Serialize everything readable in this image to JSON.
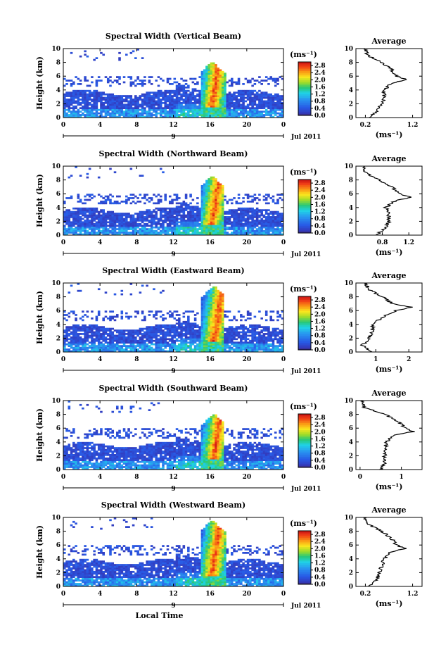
{
  "figure": {
    "date_label": "Jul 2011",
    "day_label": "9",
    "xlabel_bottom": "Local Time",
    "colorbar_unit_label": "(ms⁻¹)"
  },
  "chart_data": [
    {
      "type": "heatmap",
      "title": "Spectral Width (Vertical Beam)",
      "xlabel": "",
      "ylabel": "Height (km)",
      "xlim": [
        0,
        24
      ],
      "ylim": [
        0,
        10
      ],
      "x_ticks": [
        "0",
        "4",
        "8",
        "12",
        "16",
        "20",
        "0"
      ],
      "y_ticks": [
        "0",
        "2",
        "4",
        "6",
        "8",
        "10"
      ],
      "colorbar": {
        "label": "(ms⁻¹)",
        "ticks": [
          "0.0",
          "0.4",
          "0.8",
          "1.2",
          "1.6",
          "2.0",
          "2.4",
          "2.8"
        ],
        "range": [
          0,
          3.0
        ]
      },
      "convective_event": {
        "time_start": 14.8,
        "time_end": 17.5,
        "max_height": 8.0
      },
      "profile": {
        "title": "Average",
        "xlabel": "(ms⁻¹)",
        "x_ticks": [
          "0.2",
          "1.2"
        ],
        "xlim": [
          0.0,
          1.4
        ],
        "heights": [
          0,
          1,
          2,
          3,
          4,
          5,
          5.5,
          6,
          7,
          8,
          9,
          10
        ],
        "values": [
          0.3,
          0.45,
          0.55,
          0.6,
          0.6,
          0.75,
          1.1,
          0.85,
          0.75,
          0.55,
          0.25,
          0.2
        ]
      }
    },
    {
      "type": "heatmap",
      "title": "Spectral Width (Northward Beam)",
      "xlabel": "",
      "ylabel": "Height (km)",
      "xlim": [
        0,
        24
      ],
      "ylim": [
        0,
        10
      ],
      "x_ticks": [
        "0",
        "4",
        "8",
        "12",
        "16",
        "20",
        "0"
      ],
      "y_ticks": [
        "0",
        "2",
        "4",
        "6",
        "8",
        "10"
      ],
      "colorbar": {
        "label": "(ms⁻¹)",
        "ticks": [
          "0.0",
          "0.4",
          "0.8",
          "1.2",
          "1.6",
          "2.0",
          "2.4",
          "2.8"
        ],
        "range": [
          0,
          3.0
        ]
      },
      "convective_event": {
        "time_start": 14.8,
        "time_end": 17.3,
        "max_height": 8.5
      },
      "profile": {
        "title": "Average",
        "xlabel": "(ms⁻¹)",
        "x_ticks": [
          "0.8",
          "1.2"
        ],
        "xlim": [
          0.4,
          1.4
        ],
        "heights": [
          0,
          1,
          2,
          3,
          4,
          5,
          5.5,
          6,
          7,
          8,
          9,
          10
        ],
        "values": [
          0.7,
          0.85,
          0.9,
          0.9,
          0.85,
          1.0,
          1.25,
          1.05,
          0.95,
          0.75,
          0.55,
          0.5
        ]
      }
    },
    {
      "type": "heatmap",
      "title": "Spectral Width (Eastward Beam)",
      "xlabel": "",
      "ylabel": "Height (km)",
      "xlim": [
        0,
        24
      ],
      "ylim": [
        0,
        10
      ],
      "x_ticks": [
        "0",
        "4",
        "8",
        "12",
        "16",
        "20",
        "0"
      ],
      "y_ticks": [
        "0",
        "2",
        "4",
        "6",
        "8",
        "10"
      ],
      "colorbar": {
        "label": "(ms⁻¹)",
        "ticks": [
          "0.0",
          "0.4",
          "0.8",
          "1.2",
          "1.6",
          "2.0",
          "2.4",
          "2.8"
        ],
        "range": [
          0,
          3.0
        ]
      },
      "convective_event": {
        "time_start": 15.0,
        "time_end": 17.3,
        "max_height": 9.5
      },
      "profile": {
        "title": "Average",
        "xlabel": "(ms⁻¹)",
        "x_ticks": [
          "1",
          "2"
        ],
        "xlim": [
          0.4,
          2.4
        ],
        "heights": [
          0,
          1,
          2,
          3,
          4,
          5,
          6,
          6.5,
          7,
          8,
          9,
          10
        ],
        "values": [
          0.9,
          0.6,
          0.8,
          0.9,
          0.9,
          1.2,
          1.6,
          2.1,
          1.5,
          1.2,
          0.8,
          0.7
        ]
      }
    },
    {
      "type": "heatmap",
      "title": "Spectral Width (Southward Beam)",
      "xlabel": "",
      "ylabel": "Height (km)",
      "xlim": [
        0,
        24
      ],
      "ylim": [
        0,
        10
      ],
      "x_ticks": [
        "0",
        "4",
        "8",
        "12",
        "16",
        "20",
        "0"
      ],
      "y_ticks": [
        "0",
        "2",
        "4",
        "6",
        "8",
        "10"
      ],
      "colorbar": {
        "label": "(ms⁻¹)",
        "ticks": [
          "0.0",
          "0.4",
          "0.8",
          "1.2",
          "1.6",
          "2.0",
          "2.4",
          "2.8"
        ],
        "range": [
          0,
          3.0
        ]
      },
      "convective_event": {
        "time_start": 15.0,
        "time_end": 17.3,
        "max_height": 8.0
      },
      "profile": {
        "title": "Average",
        "xlabel": "(ms⁻¹)",
        "x_ticks": [
          "0",
          "1"
        ],
        "xlim": [
          -0.1,
          1.5
        ],
        "heights": [
          0,
          1,
          2,
          3,
          4,
          5,
          5.5,
          6,
          7,
          8,
          9,
          10
        ],
        "values": [
          0.5,
          0.6,
          0.6,
          0.6,
          0.65,
          0.8,
          1.3,
          1.1,
          0.9,
          0.6,
          0.1,
          0.05
        ]
      }
    },
    {
      "type": "heatmap",
      "title": "Spectral Width (Westward Beam)",
      "xlabel": "Local Time",
      "ylabel": "Height (km)",
      "xlim": [
        0,
        24
      ],
      "ylim": [
        0,
        10
      ],
      "x_ticks": [
        "0",
        "4",
        "8",
        "12",
        "16",
        "20",
        "0"
      ],
      "y_ticks": [
        "0",
        "2",
        "4",
        "6",
        "8",
        "10"
      ],
      "colorbar": {
        "label": "(ms⁻¹)",
        "ticks": [
          "0.0",
          "0.4",
          "0.8",
          "1.2",
          "1.6",
          "2.0",
          "2.4",
          "2.8"
        ],
        "range": [
          0,
          3.0
        ]
      },
      "convective_event": {
        "time_start": 14.8,
        "time_end": 17.5,
        "max_height": 9.5
      },
      "profile": {
        "title": "Average",
        "xlabel": "(ms⁻¹)",
        "x_ticks": [
          "0.2",
          "1.2"
        ],
        "xlim": [
          0.0,
          1.4
        ],
        "heights": [
          0,
          1,
          2,
          3,
          4,
          5,
          5.5,
          6,
          7,
          8,
          9,
          10
        ],
        "values": [
          0.3,
          0.45,
          0.5,
          0.55,
          0.6,
          0.75,
          1.05,
          0.85,
          0.75,
          0.55,
          0.25,
          0.2
        ]
      }
    }
  ]
}
